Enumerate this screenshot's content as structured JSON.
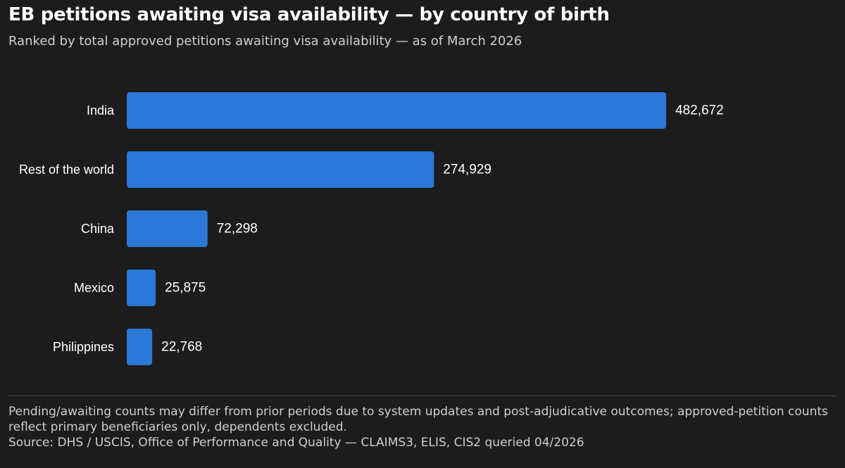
{
  "header": {
    "title": "EB petitions awaiting visa availability — by country of birth",
    "subtitle": "Ranked by total approved petitions awaiting visa availability — as of March 2026"
  },
  "footer": {
    "note": "Pending/awaiting counts may differ from prior periods due to system updates and post-adjudicative outcomes; approved-petition counts reflect primary beneficiaries only, dependents excluded.",
    "source": "Source: DHS / USCIS, Office of Performance and Quality — CLAIMS3, ELIS, CIS2 queried 04/2026"
  },
  "colors": {
    "bar": "#2b78d8",
    "background": "#1c1c1c",
    "text": "#ffffff"
  },
  "chart_data": {
    "type": "bar",
    "orientation": "horizontal",
    "title": "EB petitions awaiting visa availability — by country of birth",
    "subtitle": "Ranked by total approved petitions awaiting visa availability — as of March 2026",
    "categories": [
      "India",
      "Rest of the world",
      "China",
      "Mexico",
      "Philippines"
    ],
    "values": [
      482672,
      274929,
      72298,
      25875,
      22768
    ],
    "value_labels": [
      "482,672",
      "274,929",
      "72,298",
      "25,875",
      "22,768"
    ],
    "xlim": [
      0,
      482672
    ],
    "grid": false,
    "legend": "none"
  }
}
